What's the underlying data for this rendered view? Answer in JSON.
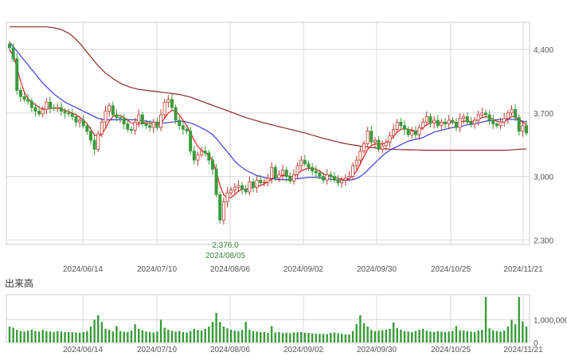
{
  "chart_data": [
    {
      "type": "candlestick",
      "title": "",
      "xlabel": "",
      "ylabel": "",
      "ylim": [
        2250,
        4700
      ],
      "y_ticks": [
        "4,400",
        "3,700",
        "3,000",
        "2,300"
      ],
      "y_tick_values": [
        4400,
        3700,
        3000,
        2300
      ],
      "x_ticks": [
        "2024/06/14",
        "2024/07/10",
        "2024/08/06",
        "2024/09/02",
        "2024/09/30",
        "2024/10/25",
        "2024/11/21"
      ],
      "annotation": {
        "value": "2,376.0",
        "date": "2024/08/05"
      },
      "colors": {
        "up": "#c0392b",
        "down": "#3a9a3a",
        "ma_short": "#e02020",
        "ma_mid": "#3b3bdc",
        "ma_long": "#8b2a2a",
        "grid": "#d8d8d8"
      },
      "grid": true,
      "closes": [
        4420,
        4300,
        3950,
        3880,
        3850,
        3830,
        3760,
        3720,
        3690,
        3740,
        3820,
        3760,
        3750,
        3760,
        3720,
        3700,
        3690,
        3660,
        3600,
        3620,
        3560,
        3500,
        3400,
        3300,
        3470,
        3600,
        3720,
        3780,
        3680,
        3650,
        3640,
        3580,
        3520,
        3510,
        3600,
        3680,
        3580,
        3560,
        3540,
        3600,
        3540,
        3680,
        3820,
        3850,
        3760,
        3620,
        3560,
        3520,
        3500,
        3280,
        3180,
        3240,
        3280,
        3260,
        3180,
        3080,
        2800,
        2520,
        2720,
        2820,
        2850,
        2880,
        2900,
        2860,
        2830,
        2940,
        2880,
        2960,
        2930,
        2940,
        2980,
        3100,
        2980,
        3020,
        3070,
        3000,
        2950,
        3020,
        3120,
        3180,
        3140,
        3100,
        3060,
        3040,
        3000,
        2960,
        3020,
        3000,
        2960,
        2930,
        2960,
        2980,
        3000,
        3120,
        3180,
        3280,
        3360,
        3500,
        3380,
        3400,
        3300,
        3340,
        3380,
        3450,
        3520,
        3600,
        3560,
        3520,
        3460,
        3500,
        3460,
        3540,
        3600,
        3660,
        3590,
        3620,
        3560,
        3600,
        3580,
        3620,
        3600,
        3540,
        3640,
        3660,
        3600,
        3580,
        3620,
        3680,
        3700,
        3680,
        3620,
        3580,
        3560,
        3600,
        3640,
        3700,
        3740,
        3650,
        3500,
        3560,
        3480
      ],
      "ma_short": [
        4400,
        4330,
        4200,
        4050,
        3930,
        3860,
        3820,
        3790,
        3760,
        3745,
        3745,
        3750,
        3755,
        3755,
        3745,
        3730,
        3715,
        3700,
        3680,
        3655,
        3620,
        3580,
        3520,
        3460,
        3440,
        3470,
        3530,
        3610,
        3660,
        3680,
        3670,
        3650,
        3620,
        3590,
        3575,
        3580,
        3590,
        3590,
        3585,
        3580,
        3570,
        3590,
        3640,
        3700,
        3730,
        3720,
        3680,
        3620,
        3560,
        3480,
        3400,
        3330,
        3290,
        3260,
        3230,
        3180,
        3060,
        2900,
        2800,
        2760,
        2770,
        2800,
        2840,
        2860,
        2860,
        2870,
        2880,
        2890,
        2900,
        2920,
        2940,
        2970,
        2990,
        3000,
        3010,
        3010,
        3000,
        3000,
        3030,
        3060,
        3080,
        3090,
        3090,
        3080,
        3060,
        3030,
        3010,
        3000,
        2990,
        2980,
        2970,
        2965,
        2975,
        3010,
        3060,
        3140,
        3220,
        3300,
        3340,
        3360,
        3360,
        3360,
        3370,
        3400,
        3440,
        3490,
        3520,
        3530,
        3520,
        3510,
        3500,
        3510,
        3540,
        3570,
        3590,
        3600,
        3600,
        3595,
        3590,
        3595,
        3600,
        3590,
        3600,
        3610,
        3610,
        3605,
        3610,
        3630,
        3650,
        3660,
        3650,
        3630,
        3610,
        3600,
        3605,
        3630,
        3660,
        3660,
        3620,
        3600,
        3570
      ],
      "ma_mid": [
        4480,
        4430,
        4380,
        4330,
        4280,
        4230,
        4180,
        4130,
        4080,
        4030,
        3990,
        3950,
        3910,
        3880,
        3850,
        3820,
        3800,
        3780,
        3760,
        3740,
        3720,
        3700,
        3680,
        3660,
        3640,
        3630,
        3625,
        3625,
        3625,
        3625,
        3625,
        3625,
        3625,
        3625,
        3625,
        3620,
        3615,
        3610,
        3605,
        3600,
        3595,
        3590,
        3590,
        3595,
        3600,
        3605,
        3610,
        3610,
        3600,
        3590,
        3575,
        3555,
        3535,
        3515,
        3490,
        3460,
        3420,
        3370,
        3320,
        3270,
        3220,
        3170,
        3130,
        3100,
        3070,
        3050,
        3030,
        3010,
        3000,
        2990,
        2980,
        2975,
        2970,
        2965,
        2965,
        2965,
        2965,
        2970,
        2975,
        2980,
        2985,
        2990,
        2990,
        2990,
        2985,
        2980,
        2975,
        2970,
        2965,
        2960,
        2960,
        2960,
        2960,
        2965,
        2980,
        3000,
        3030,
        3070,
        3110,
        3150,
        3190,
        3230,
        3260,
        3290,
        3310,
        3330,
        3350,
        3370,
        3390,
        3400,
        3410,
        3420,
        3430,
        3450,
        3470,
        3490,
        3500,
        3510,
        3520,
        3530,
        3540,
        3545,
        3550,
        3560,
        3570,
        3575,
        3580,
        3590,
        3600,
        3610,
        3615,
        3620,
        3625,
        3630,
        3630,
        3630,
        3630,
        3630,
        3620,
        3610,
        3600
      ],
      "ma_long": [
        4650,
        4650,
        4650,
        4650,
        4650,
        4650,
        4650,
        4650,
        4650,
        4650,
        4650,
        4645,
        4640,
        4630,
        4620,
        4600,
        4580,
        4550,
        4510,
        4470,
        4420,
        4370,
        4320,
        4270,
        4220,
        4180,
        4140,
        4110,
        4080,
        4055,
        4030,
        4010,
        3995,
        3980,
        3970,
        3960,
        3955,
        3950,
        3945,
        3940,
        3935,
        3930,
        3925,
        3920,
        3915,
        3910,
        3905,
        3895,
        3885,
        3875,
        3860,
        3845,
        3830,
        3815,
        3800,
        3785,
        3770,
        3755,
        3740,
        3725,
        3710,
        3695,
        3680,
        3665,
        3650,
        3638,
        3626,
        3614,
        3602,
        3590,
        3580,
        3570,
        3560,
        3550,
        3540,
        3530,
        3520,
        3510,
        3500,
        3490,
        3480,
        3468,
        3456,
        3444,
        3432,
        3420,
        3410,
        3400,
        3390,
        3380,
        3370,
        3362,
        3355,
        3348,
        3342,
        3336,
        3330,
        3325,
        3320,
        3316,
        3312,
        3308,
        3305,
        3302,
        3300,
        3298,
        3297,
        3296,
        3295,
        3294,
        3293,
        3292,
        3291,
        3290,
        3290,
        3290,
        3290,
        3290,
        3290,
        3290,
        3290,
        3290,
        3290,
        3290,
        3290,
        3290,
        3290,
        3290,
        3290,
        3290,
        3290,
        3290,
        3290,
        3290,
        3290,
        3291,
        3293,
        3297,
        3300,
        3302,
        3304
      ],
      "ma_start_index": 0
    },
    {
      "type": "bar",
      "title": "出来高",
      "y_ticks": [
        "1,000,000",
        "0"
      ],
      "y_tick_values": [
        1000000,
        0
      ],
      "ylim": [
        0,
        2100000
      ],
      "color": "#3a9a3a",
      "x_ticks": [
        "2024/06/14",
        "2024/07/10",
        "2024/08/06",
        "2024/09/02",
        "2024/09/30",
        "2024/10/25",
        "2024/11/21"
      ],
      "values": [
        700000,
        650000,
        550000,
        500000,
        480000,
        520000,
        560000,
        500000,
        480000,
        550000,
        500000,
        480000,
        460000,
        500000,
        480000,
        460000,
        450000,
        450000,
        440000,
        430000,
        460000,
        500000,
        700000,
        1000000,
        1200000,
        900000,
        600000,
        550000,
        480000,
        720000,
        500000,
        470000,
        460000,
        520000,
        800000,
        600000,
        540000,
        480000,
        460000,
        440000,
        480000,
        1000000,
        650000,
        560000,
        520000,
        480000,
        500000,
        460000,
        440000,
        500000,
        600000,
        550000,
        520000,
        600000,
        700000,
        900000,
        1300000,
        900000,
        700000,
        620000,
        560000,
        520000,
        500000,
        560000,
        900000,
        560000,
        500000,
        480000,
        460000,
        460000,
        420000,
        720000,
        440000,
        460000,
        420000,
        430000,
        400000,
        440000,
        450000,
        460000,
        430000,
        420000,
        400000,
        390000,
        380000,
        380000,
        370000,
        420000,
        440000,
        400000,
        380000,
        360000,
        350000,
        500000,
        800000,
        1200000,
        850000,
        700000,
        550000,
        500000,
        520000,
        540000,
        560000,
        600000,
        880000,
        640000,
        560000,
        500000,
        480000,
        460000,
        500000,
        560000,
        600000,
        520000,
        480000,
        460000,
        500000,
        480000,
        460000,
        480000,
        500000,
        720000,
        540000,
        520000,
        500000,
        480000,
        460000,
        520000,
        560000,
        2000000,
        620000,
        540000,
        500000,
        480000,
        520000,
        700000,
        1000000,
        800000,
        2000000,
        920000,
        700000
      ]
    }
  ]
}
